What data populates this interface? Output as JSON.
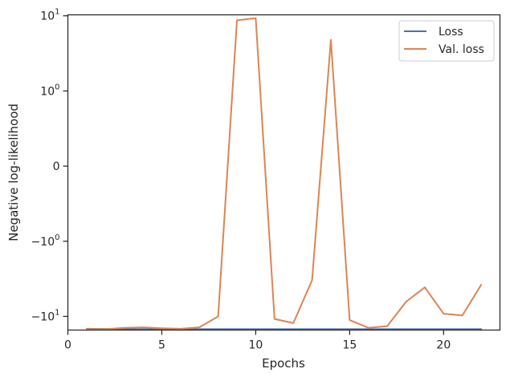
{
  "chart_data": {
    "type": "line",
    "xlabel": "Epochs",
    "ylabel": "Negative log-likelihood",
    "xlim": [
      0,
      23
    ],
    "ylim": [
      -15.2,
      10.3
    ],
    "yscale": "symlog",
    "linthresh": 1,
    "x": [
      1,
      2,
      3,
      4,
      5,
      6,
      7,
      8,
      9,
      10,
      11,
      12,
      13,
      14,
      15,
      16,
      17,
      18,
      19,
      20,
      21,
      22
    ],
    "series": [
      {
        "name": "Loss",
        "color": "#4c72b0",
        "values": [
          -14.6,
          -14.7,
          -14.75,
          -14.78,
          -14.8,
          -14.8,
          -14.8,
          -14.8,
          -14.8,
          -14.8,
          -14.8,
          -14.8,
          -14.8,
          -14.8,
          -14.8,
          -14.8,
          -14.8,
          -14.8,
          -14.8,
          -14.8,
          -14.8,
          -14.8
        ]
      },
      {
        "name": "Val. loss",
        "color": "#dd8452",
        "values": [
          -14.7,
          -14.8,
          -14.2,
          -14.0,
          -14.4,
          -14.6,
          -14.0,
          -10.0,
          8.7,
          9.3,
          -10.8,
          -12.3,
          -3.3,
          4.8,
          -11.2,
          -14.2,
          -13.5,
          -6.4,
          -4.1,
          -9.2,
          -9.7,
          -3.8
        ]
      }
    ],
    "xticks": [
      0,
      5,
      10,
      15,
      20
    ],
    "xtick_labels": [
      "0",
      "5",
      "10",
      "15",
      "20"
    ],
    "yticks": [
      {
        "value": 10,
        "base": "10",
        "exp": "1",
        "neg": false
      },
      {
        "value": 1,
        "base": "10",
        "exp": "0",
        "neg": false
      },
      {
        "value": 0,
        "base": "0",
        "exp": "",
        "neg": false
      },
      {
        "value": -1,
        "base": "10",
        "exp": "0",
        "neg": true
      },
      {
        "value": -10,
        "base": "10",
        "exp": "1",
        "neg": true
      }
    ],
    "legend": {
      "position": "upper right",
      "entries": [
        "Loss",
        "Val. loss"
      ]
    },
    "grid": false
  }
}
